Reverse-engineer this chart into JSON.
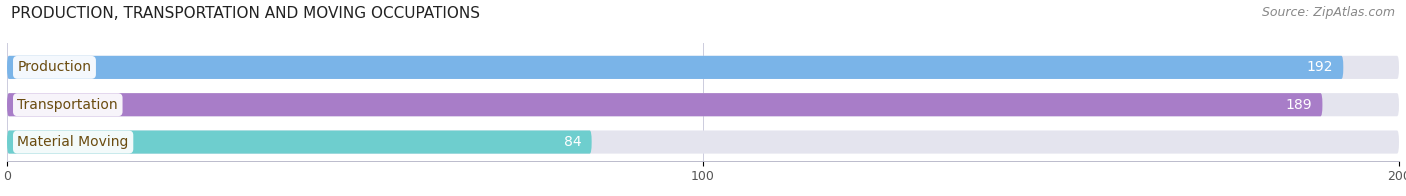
{
  "title": "PRODUCTION, TRANSPORTATION AND MOVING OCCUPATIONS",
  "source": "Source: ZipAtlas.com",
  "categories": [
    "Production",
    "Transportation",
    "Material Moving"
  ],
  "values": [
    192,
    189,
    84
  ],
  "bar_colors": [
    "#7ab4e8",
    "#a87dc8",
    "#6ecece"
  ],
  "bar_bg_color": "#e4e4ee",
  "xlim": [
    0,
    200
  ],
  "xticks": [
    0,
    100,
    200
  ],
  "title_fontsize": 11,
  "source_fontsize": 9,
  "label_fontsize": 10,
  "value_fontsize": 10,
  "label_color": "#6b4c10",
  "background_color": "#ffffff"
}
